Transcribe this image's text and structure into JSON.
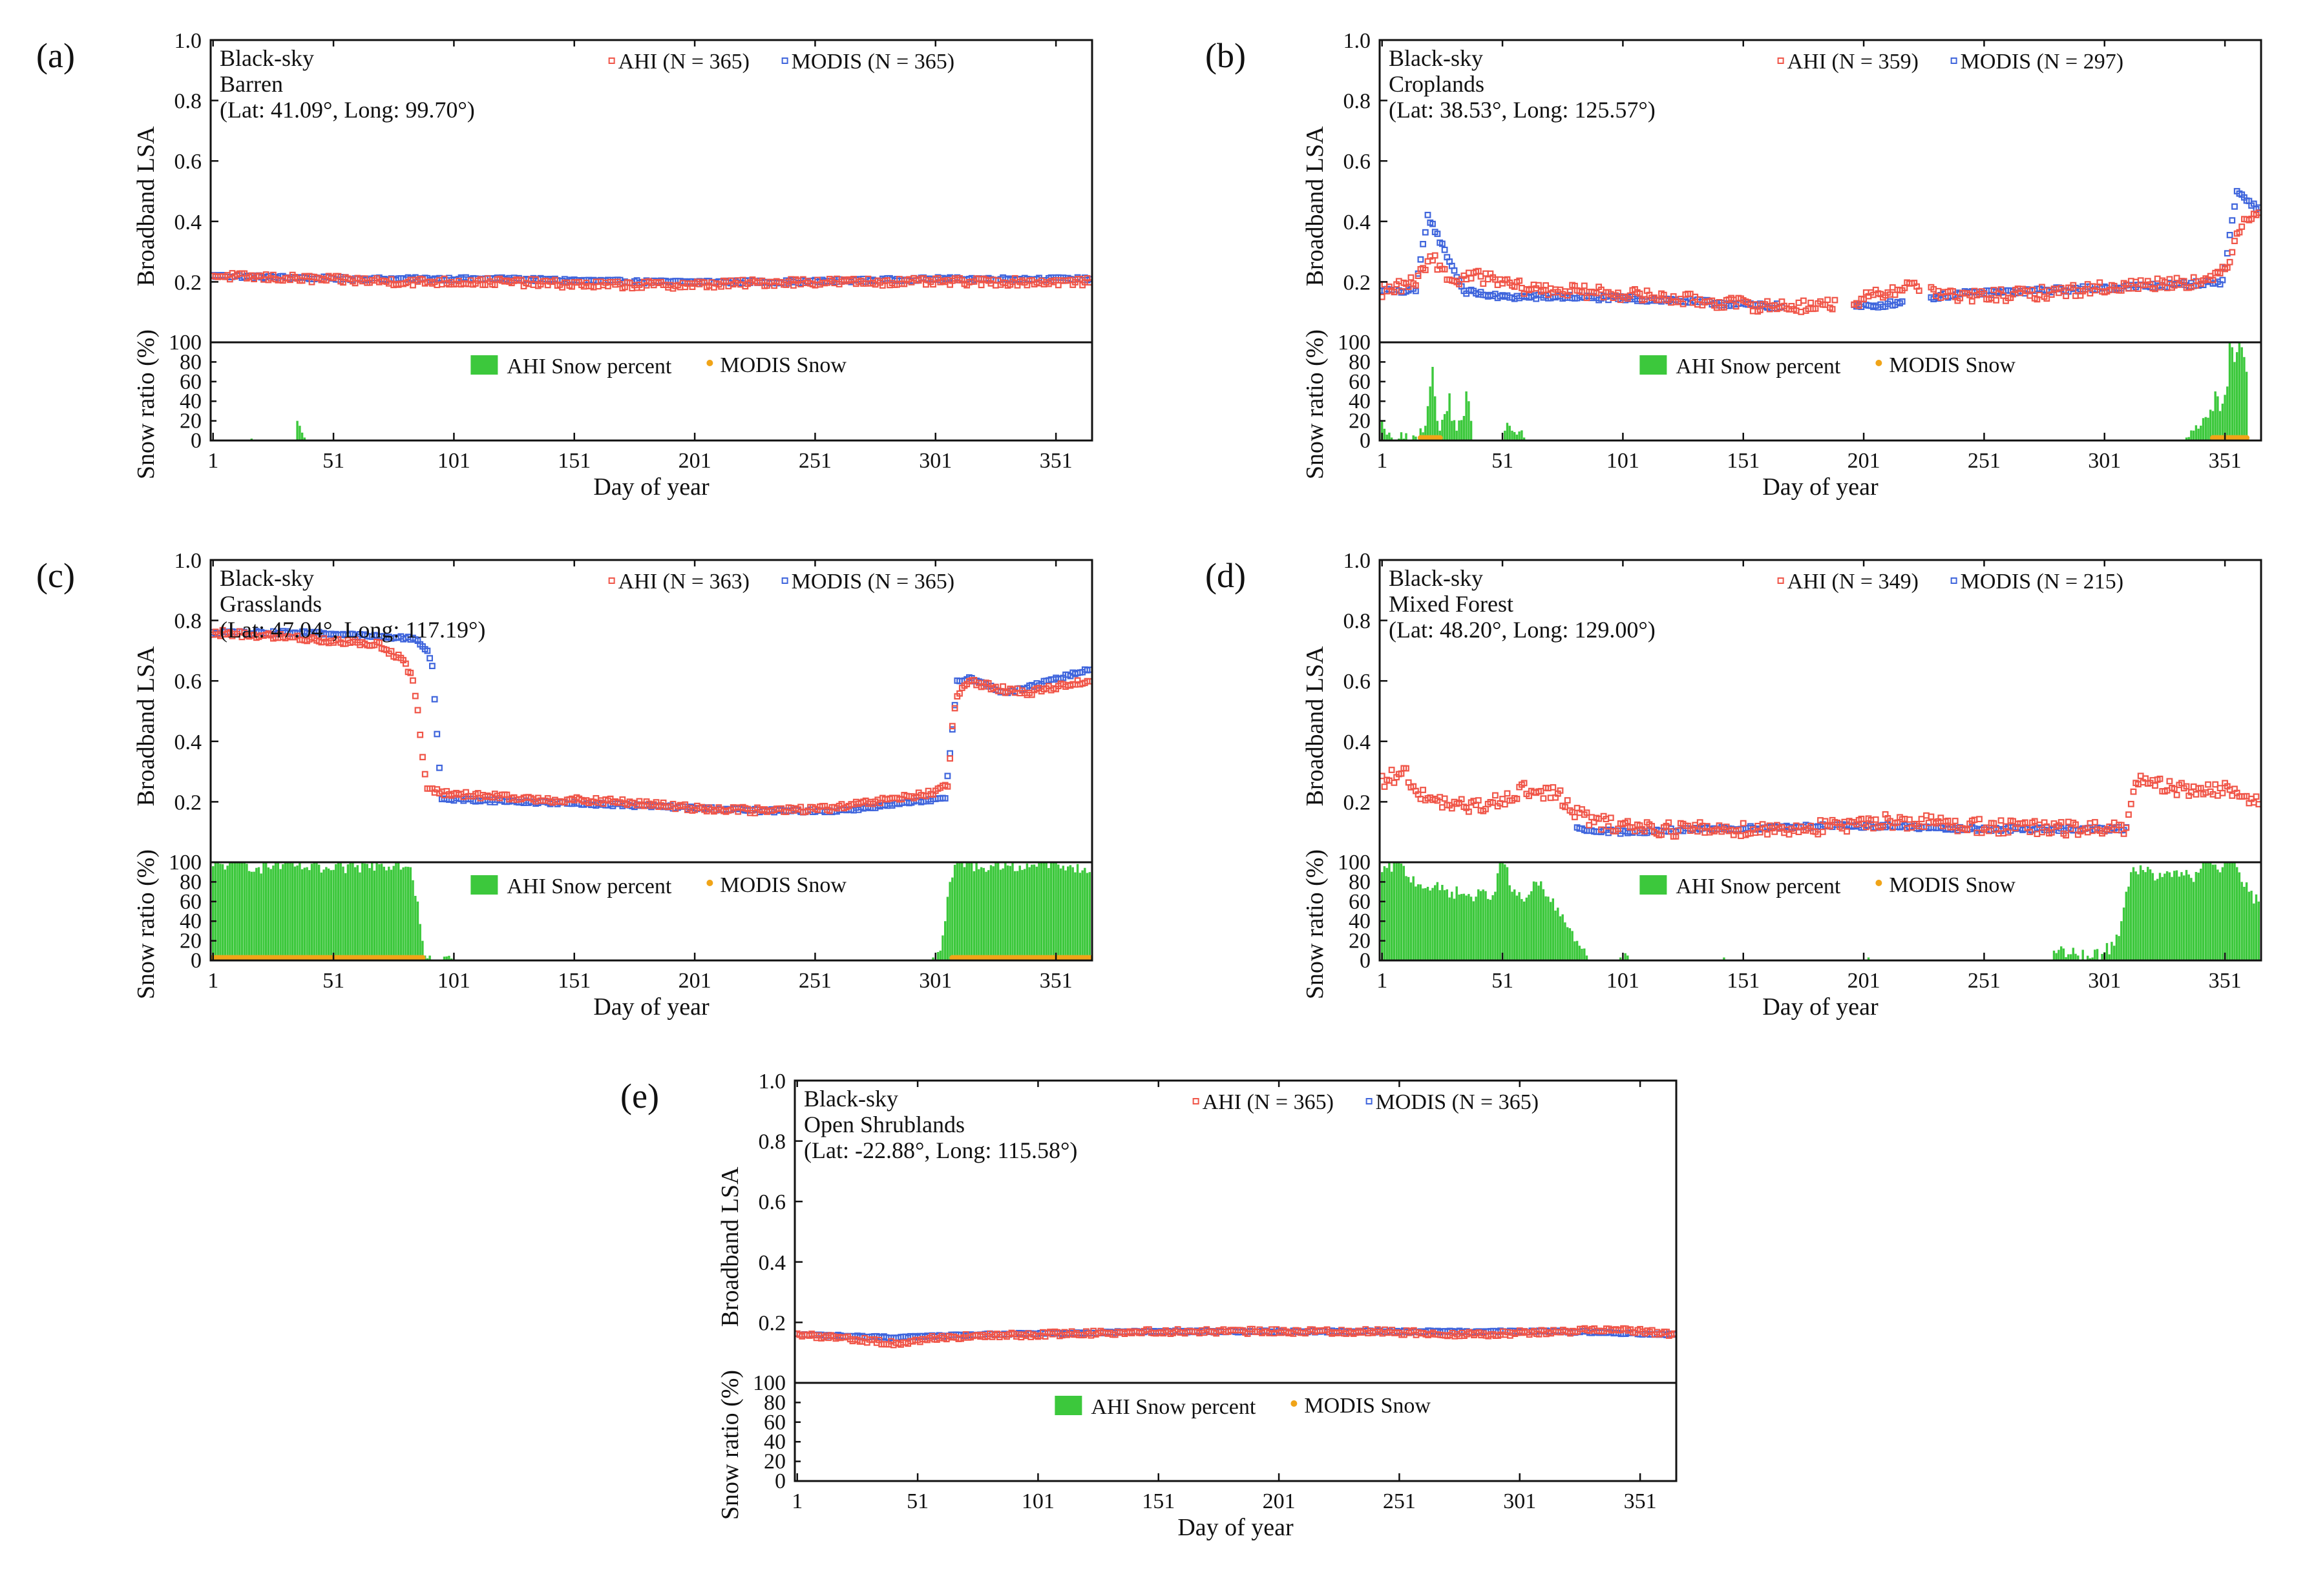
{
  "colors": {
    "ahi": "#f05548",
    "modis": "#3f65dc",
    "snow_bar": "#3cc83c",
    "modis_snow": "#f0a418",
    "axis": "#111111"
  },
  "labels": {
    "lsa_axis": "Broadband LSA",
    "snow_axis": "Snow ratio (%)",
    "x_axis": "Day of year",
    "snow_legend_ahi": "AHI Snow percent",
    "snow_legend_modis": "MODIS Snow"
  },
  "chart_data": [
    {
      "panel": "(a)",
      "type": "scatter",
      "sky": "Black-sky",
      "land_cover": "Barren",
      "location": "(Lat:  41.09°, Long:  99.70°)",
      "legend": {
        "ahi": "AHI (N = 365)",
        "modis": "MODIS (N = 365)"
      },
      "ylim": [
        0,
        1
      ],
      "yticks": [
        "1.0",
        "0.8",
        "0.6",
        "0.4",
        "0.2"
      ],
      "snow_ylim": [
        0,
        100
      ],
      "snow_yticks": [
        "100",
        "80",
        "60",
        "40",
        "20",
        "0"
      ],
      "xticks": [
        "1",
        "51",
        "101",
        "151",
        "201",
        "251",
        "301",
        "351"
      ],
      "xlim": [
        0,
        366
      ],
      "ahi_lsa": {
        "day": [
          1,
          40,
          80,
          120,
          160,
          200,
          240,
          280,
          320,
          365
        ],
        "value": [
          0.22,
          0.21,
          0.2,
          0.2,
          0.19,
          0.19,
          0.2,
          0.2,
          0.2,
          0.2
        ],
        "noise": 0.012,
        "gaps": []
      },
      "modis_lsa": {
        "day": [
          1,
          60,
          120,
          180,
          240,
          300,
          365
        ],
        "value": [
          0.22,
          0.21,
          0.21,
          0.2,
          0.2,
          0.21,
          0.21
        ],
        "noise": 0.005,
        "gaps": []
      },
      "ahi_snow": [
        [
          17,
          2
        ],
        [
          36,
          20
        ],
        [
          37,
          15
        ],
        [
          38,
          8
        ],
        [
          39,
          3
        ]
      ],
      "modis_snow": []
    },
    {
      "panel": "(b)",
      "type": "scatter",
      "sky": "Black-sky",
      "land_cover": "Croplands",
      "location": "(Lat:  38.53°, Long: 125.57°)",
      "legend": {
        "ahi": "AHI (N = 359)",
        "modis": "MODIS (N = 297)"
      },
      "ylim": [
        0,
        1
      ],
      "yticks": [
        "1.0",
        "0.8",
        "0.6",
        "0.4",
        "0.2"
      ],
      "snow_ylim": [
        0,
        100
      ],
      "snow_yticks": [
        "100",
        "80",
        "60",
        "40",
        "20",
        "0"
      ],
      "xticks": [
        "1",
        "51",
        "101",
        "151",
        "201",
        "251",
        "301",
        "351"
      ],
      "xlim": [
        0,
        366
      ],
      "ahi_lsa": {
        "day": [
          1,
          15,
          22,
          30,
          40,
          60,
          80,
          100,
          130,
          160,
          180,
          200,
          220,
          240,
          270,
          300,
          330,
          345,
          352,
          358,
          365
        ],
        "value": [
          0.17,
          0.2,
          0.28,
          0.2,
          0.22,
          0.18,
          0.17,
          0.16,
          0.14,
          0.12,
          0.12,
          0.14,
          0.19,
          0.15,
          0.16,
          0.18,
          0.2,
          0.2,
          0.26,
          0.4,
          0.44
        ],
        "noise": 0.02,
        "gaps": [
          [
            190,
            196
          ],
          [
            225,
            228
          ]
        ]
      },
      "modis_lsa": {
        "day": [
          1,
          15,
          20,
          35,
          50,
          80,
          120,
          160,
          190,
          205,
          240,
          270,
          300,
          330,
          350,
          356,
          365
        ],
        "value": [
          0.17,
          0.17,
          0.42,
          0.17,
          0.15,
          0.15,
          0.14,
          0.12,
          0.12,
          0.12,
          0.16,
          0.17,
          0.18,
          0.19,
          0.2,
          0.5,
          0.44
        ],
        "noise": 0.008,
        "gaps": [
          [
            168,
            196
          ],
          [
            218,
            228
          ]
        ]
      },
      "ahi_snow": [
        [
          1,
          20
        ],
        [
          2,
          12
        ],
        [
          3,
          6
        ],
        [
          5,
          3
        ],
        [
          8,
          2
        ],
        [
          15,
          4
        ],
        [
          19,
          15
        ],
        [
          20,
          35
        ],
        [
          21,
          55
        ],
        [
          22,
          75
        ],
        [
          23,
          45
        ],
        [
          24,
          20
        ],
        [
          25,
          10
        ],
        [
          28,
          30
        ],
        [
          29,
          48
        ],
        [
          30,
          20
        ],
        [
          32,
          10
        ],
        [
          35,
          25
        ],
        [
          36,
          50
        ],
        [
          37,
          40
        ],
        [
          38,
          20
        ],
        [
          52,
          10
        ],
        [
          53,
          18
        ],
        [
          54,
          15
        ],
        [
          55,
          10
        ],
        [
          57,
          6
        ],
        [
          60,
          3
        ],
        [
          335,
          3
        ],
        [
          346,
          30
        ],
        [
          347,
          50
        ],
        [
          348,
          45
        ],
        [
          349,
          30
        ],
        [
          352,
          55
        ],
        [
          353,
          100
        ],
        [
          354,
          95
        ],
        [
          355,
          80
        ],
        [
          356,
          90
        ],
        [
          357,
          100
        ],
        [
          358,
          95
        ],
        [
          359,
          85
        ],
        [
          360,
          70
        ]
      ],
      "modis_snow": [
        17,
        18,
        19,
        20,
        21,
        22,
        23,
        24,
        25,
        346,
        347,
        348,
        349,
        350,
        351,
        352,
        353,
        354,
        355,
        356,
        357,
        358,
        359,
        360
      ]
    },
    {
      "panel": "(c)",
      "type": "scatter",
      "sky": "Black-sky",
      "land_cover": "Grasslands",
      "location": "(Lat:  47.04°, Long:  117.19°)",
      "legend": {
        "ahi": "AHI (N = 363)",
        "modis": "MODIS (N = 365)"
      },
      "ylim": [
        0,
        1
      ],
      "yticks": [
        "1.0",
        "0.8",
        "0.6",
        "0.4",
        "0.2"
      ],
      "snow_ylim": [
        0,
        100
      ],
      "snow_yticks": [
        "100",
        "80",
        "60",
        "40",
        "20",
        "0"
      ],
      "xticks": [
        "1",
        "51",
        "101",
        "151",
        "201",
        "251",
        "301",
        "351"
      ],
      "xlim": [
        0,
        366
      ],
      "ahi_lsa": {
        "day": [
          1,
          40,
          70,
          80,
          84,
          86,
          88,
          90,
          95,
          130,
          170,
          200,
          230,
          260,
          300,
          306,
          308,
          310,
          315,
          330,
          340,
          350,
          365
        ],
        "value": [
          0.76,
          0.74,
          0.72,
          0.67,
          0.6,
          0.5,
          0.35,
          0.24,
          0.23,
          0.21,
          0.2,
          0.18,
          0.17,
          0.18,
          0.23,
          0.25,
          0.45,
          0.55,
          0.6,
          0.57,
          0.56,
          0.58,
          0.6
        ],
        "noise": 0.01,
        "gaps": []
      },
      "modis_lsa": {
        "day": [
          1,
          40,
          85,
          90,
          92,
          94,
          96,
          130,
          170,
          200,
          230,
          260,
          305,
          308,
          310,
          315,
          330,
          340,
          365
        ],
        "value": [
          0.76,
          0.76,
          0.74,
          0.7,
          0.65,
          0.42,
          0.21,
          0.2,
          0.19,
          0.18,
          0.17,
          0.17,
          0.21,
          0.44,
          0.6,
          0.61,
          0.56,
          0.58,
          0.64
        ],
        "noise": 0.005,
        "gaps": []
      },
      "ahi_snow": [
        [
          1,
          96
        ],
        [
          10,
          100
        ],
        [
          20,
          95
        ],
        [
          30,
          98
        ],
        [
          40,
          95
        ],
        [
          50,
          92
        ],
        [
          60,
          95
        ],
        [
          70,
          98
        ],
        [
          78,
          100
        ],
        [
          83,
          95
        ],
        [
          86,
          60
        ],
        [
          88,
          20
        ],
        [
          89,
          5
        ],
        [
          100,
          2
        ],
        [
          300,
          3
        ],
        [
          303,
          10
        ],
        [
          305,
          40
        ],
        [
          307,
          80
        ],
        [
          310,
          100
        ],
        [
          320,
          95
        ],
        [
          330,
          100
        ],
        [
          340,
          95
        ],
        [
          350,
          100
        ],
        [
          358,
          95
        ],
        [
          365,
          90
        ]
      ],
      "modis_snow": [
        [
          1,
          88
        ],
        [
          308,
          365
        ]
      ]
    },
    {
      "panel": "(d)",
      "type": "scatter",
      "sky": "Black-sky",
      "land_cover": "Mixed Forest",
      "location": "(Lat:  48.20°, Long: 129.00°)",
      "legend": {
        "ahi": "AHI (N = 349)",
        "modis": "MODIS (N = 215)"
      },
      "ylim": [
        0,
        1
      ],
      "yticks": [
        "1.0",
        "0.8",
        "0.6",
        "0.4",
        "0.2"
      ],
      "snow_ylim": [
        0,
        100
      ],
      "snow_yticks": [
        "100",
        "80",
        "60",
        "40",
        "20",
        "0"
      ],
      "xticks": [
        "1",
        "51",
        "101",
        "151",
        "201",
        "251",
        "301",
        "351"
      ],
      "xlim": [
        0,
        366
      ],
      "ahi_lsa": {
        "day": [
          1,
          10,
          20,
          40,
          60,
          75,
          80,
          90,
          120,
          160,
          200,
          206,
          230,
          250,
          280,
          300,
          310,
          315,
          330,
          350,
          365
        ],
        "value": [
          0.27,
          0.3,
          0.2,
          0.18,
          0.24,
          0.22,
          0.17,
          0.13,
          0.11,
          0.11,
          0.12,
          0.14,
          0.13,
          0.12,
          0.11,
          0.11,
          0.12,
          0.27,
          0.24,
          0.24,
          0.21
        ],
        "noise": 0.025,
        "gaps": []
      },
      "modis_lsa": {
        "day": [
          82,
          100,
          140,
          180,
          210,
          240,
          270,
          310
        ],
        "value": [
          0.11,
          0.1,
          0.11,
          0.12,
          0.12,
          0.11,
          0.11,
          0.11
        ],
        "noise": 0.006,
        "gaps": []
      },
      "ahi_snow": [
        [
          1,
          90
        ],
        [
          8,
          100
        ],
        [
          12,
          85
        ],
        [
          20,
          75
        ],
        [
          30,
          70
        ],
        [
          40,
          65
        ],
        [
          48,
          70
        ],
        [
          50,
          100
        ],
        [
          53,
          95
        ],
        [
          55,
          70
        ],
        [
          60,
          60
        ],
        [
          65,
          80
        ],
        [
          70,
          65
        ],
        [
          75,
          45
        ],
        [
          80,
          30
        ],
        [
          83,
          15
        ],
        [
          86,
          5
        ],
        [
          100,
          3
        ],
        [
          103,
          5
        ],
        [
          143,
          3
        ],
        [
          203,
          3
        ],
        [
          280,
          10
        ],
        [
          290,
          5
        ],
        [
          296,
          3
        ],
        [
          305,
          15
        ],
        [
          308,
          40
        ],
        [
          310,
          70
        ],
        [
          313,
          95
        ],
        [
          318,
          90
        ],
        [
          325,
          85
        ],
        [
          333,
          90
        ],
        [
          338,
          80
        ],
        [
          342,
          100
        ],
        [
          345,
          100
        ],
        [
          350,
          95
        ],
        [
          355,
          100
        ],
        [
          358,
          80
        ],
        [
          361,
          70
        ],
        [
          365,
          60
        ]
      ],
      "modis_snow": []
    },
    {
      "panel": "(e)",
      "type": "scatter",
      "sky": "Black-sky",
      "land_cover": "Open Shrublands",
      "location": "(Lat: -22.88°, Long: 115.58°)",
      "legend": {
        "ahi": "AHI (N = 365)",
        "modis": "MODIS (N = 365)"
      },
      "ylim": [
        0,
        1
      ],
      "yticks": [
        "1.0",
        "0.8",
        "0.6",
        "0.4",
        "0.2"
      ],
      "snow_ylim": [
        0,
        100
      ],
      "snow_yticks": [
        "100",
        "80",
        "60",
        "40",
        "20",
        "0"
      ],
      "xticks": [
        "1",
        "51",
        "101",
        "151",
        "201",
        "251",
        "301",
        "351"
      ],
      "xlim": [
        0,
        366
      ],
      "ahi_lsa": {
        "day": [
          1,
          20,
          40,
          60,
          100,
          150,
          200,
          240,
          280,
          320,
          340,
          365
        ],
        "value": [
          0.16,
          0.15,
          0.13,
          0.15,
          0.16,
          0.17,
          0.17,
          0.17,
          0.16,
          0.17,
          0.18,
          0.16
        ],
        "noise": 0.008,
        "gaps": []
      },
      "modis_lsa": {
        "day": [
          1,
          40,
          80,
          150,
          250,
          320,
          365
        ],
        "value": [
          0.16,
          0.15,
          0.16,
          0.17,
          0.17,
          0.17,
          0.16
        ],
        "noise": 0.003,
        "gaps": []
      },
      "ahi_snow": [],
      "modis_snow": []
    }
  ]
}
